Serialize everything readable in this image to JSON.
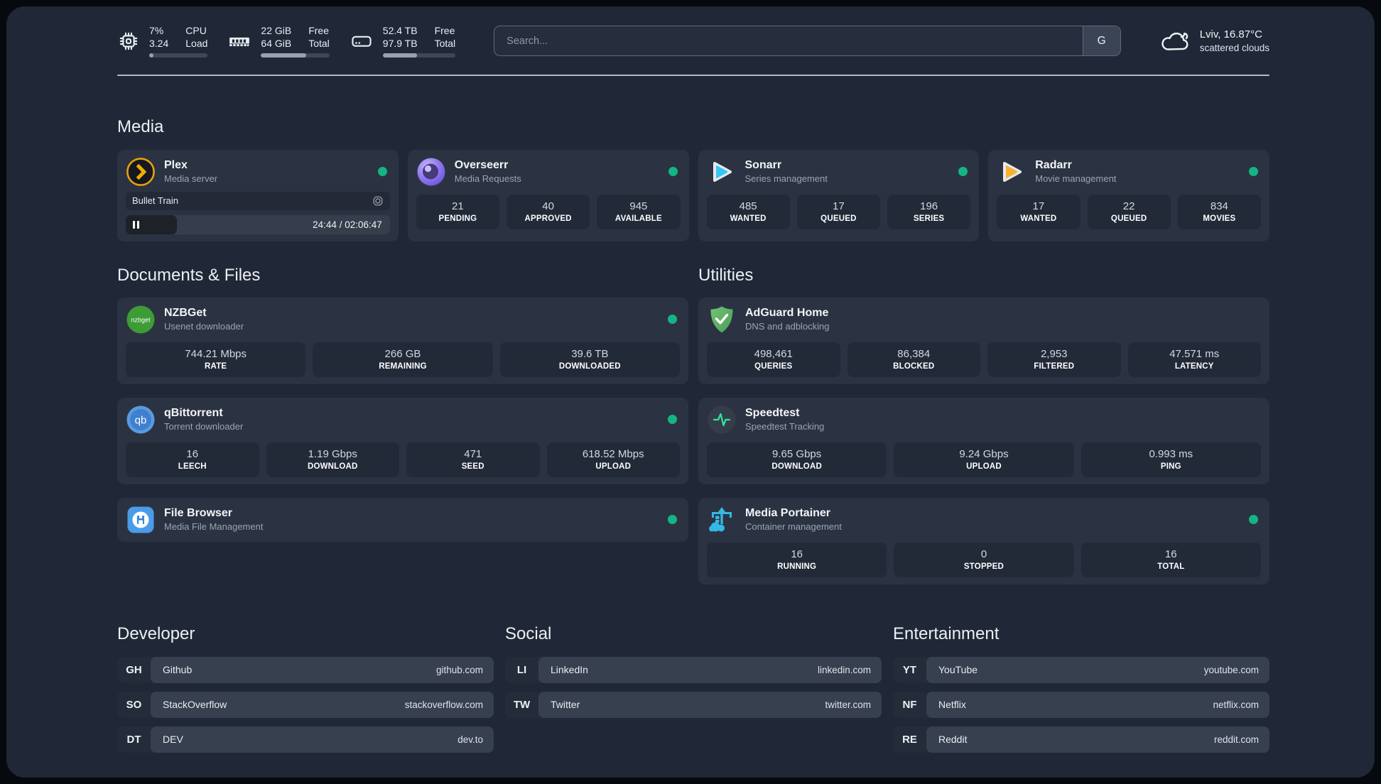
{
  "topbar": {
    "stats": [
      {
        "icon": "cpu-icon",
        "values": [
          "7%",
          "3.24"
        ],
        "labels": [
          "CPU",
          "Load"
        ],
        "progress_pct": 7
      },
      {
        "icon": "memory-icon",
        "values": [
          "22 GiB",
          "64 GiB"
        ],
        "labels": [
          "Free",
          "Total"
        ],
        "progress_pct": 66
      },
      {
        "icon": "disk-icon",
        "values": [
          "52.4 TB",
          "97.9 TB"
        ],
        "labels": [
          "Free",
          "Total"
        ],
        "progress_pct": 47
      }
    ],
    "search": {
      "placeholder": "Search...",
      "engine_button_label": "G"
    },
    "weather": {
      "location_temperature": "Lviv, 16.87°C",
      "condition": "scattered clouds"
    }
  },
  "colors": {
    "status_online": "#14b584",
    "page_bg": "#202837",
    "card_bg": "#2b3342"
  },
  "sections": {
    "media": {
      "heading": "Media",
      "plex": {
        "name": "Plex",
        "description": "Media server",
        "status": "online",
        "now_playing_title": "Bullet Train",
        "time_display": "24:44 / 02:06:47",
        "progress_pct": 19.5
      },
      "cards": [
        {
          "name": "Overseerr",
          "description": "Media Requests",
          "status": "online",
          "stats": [
            {
              "value": "21",
              "label": "PENDING"
            },
            {
              "value": "40",
              "label": "APPROVED"
            },
            {
              "value": "945",
              "label": "AVAILABLE"
            }
          ]
        },
        {
          "name": "Sonarr",
          "description": "Series management",
          "status": "online",
          "stats": [
            {
              "value": "485",
              "label": "WANTED"
            },
            {
              "value": "17",
              "label": "QUEUED"
            },
            {
              "value": "196",
              "label": "SERIES"
            }
          ]
        },
        {
          "name": "Radarr",
          "description": "Movie management",
          "status": "online",
          "stats": [
            {
              "value": "17",
              "label": "WANTED"
            },
            {
              "value": "22",
              "label": "QUEUED"
            },
            {
              "value": "834",
              "label": "MOVIES"
            }
          ]
        }
      ]
    },
    "documents": {
      "heading": "Documents & Files",
      "cards": [
        {
          "name": "NZBGet",
          "description": "Usenet downloader",
          "status": "online",
          "icon_text": "nzbget",
          "stats": [
            {
              "value": "744.21 Mbps",
              "label": "RATE"
            },
            {
              "value": "266 GB",
              "label": "REMAINING"
            },
            {
              "value": "39.6 TB",
              "label": "DOWNLOADED"
            }
          ]
        },
        {
          "name": "qBittorrent",
          "description": "Torrent downloader",
          "status": "online",
          "icon_text": "qb",
          "stats": [
            {
              "value": "16",
              "label": "LEECH"
            },
            {
              "value": "1.19 Gbps",
              "label": "DOWNLOAD"
            },
            {
              "value": "471",
              "label": "SEED"
            },
            {
              "value": "618.52 Mbps",
              "label": "UPLOAD"
            }
          ]
        },
        {
          "name": "File Browser",
          "description": "Media File Management",
          "status": "online",
          "stats": []
        }
      ]
    },
    "utilities": {
      "heading": "Utilities",
      "cards": [
        {
          "name": "AdGuard Home",
          "description": "DNS and adblocking",
          "stats": [
            {
              "value": "498,461",
              "label": "QUERIES"
            },
            {
              "value": "86,384",
              "label": "BLOCKED"
            },
            {
              "value": "2,953",
              "label": "FILTERED"
            },
            {
              "value": "47.571 ms",
              "label": "LATENCY"
            }
          ]
        },
        {
          "name": "Speedtest",
          "description": "Speedtest Tracking",
          "stats": [
            {
              "value": "9.65 Gbps",
              "label": "DOWNLOAD"
            },
            {
              "value": "9.24 Gbps",
              "label": "UPLOAD"
            },
            {
              "value": "0.993 ms",
              "label": "PING"
            }
          ]
        },
        {
          "name": "Media Portainer",
          "description": "Container management",
          "status": "online",
          "stats": [
            {
              "value": "16",
              "label": "RUNNING"
            },
            {
              "value": "0",
              "label": "STOPPED"
            },
            {
              "value": "16",
              "label": "TOTAL"
            }
          ]
        }
      ]
    }
  },
  "bookmarks": [
    {
      "heading": "Developer",
      "items": [
        {
          "abbr": "GH",
          "name": "Github",
          "url": "github.com"
        },
        {
          "abbr": "SO",
          "name": "StackOverflow",
          "url": "stackoverflow.com"
        },
        {
          "abbr": "DT",
          "name": "DEV",
          "url": "dev.to"
        }
      ]
    },
    {
      "heading": "Social",
      "items": [
        {
          "abbr": "LI",
          "name": "LinkedIn",
          "url": "linkedin.com"
        },
        {
          "abbr": "TW",
          "name": "Twitter",
          "url": "twitter.com"
        }
      ]
    },
    {
      "heading": "Entertainment",
      "items": [
        {
          "abbr": "YT",
          "name": "YouTube",
          "url": "youtube.com"
        },
        {
          "abbr": "NF",
          "name": "Netflix",
          "url": "netflix.com"
        },
        {
          "abbr": "RE",
          "name": "Reddit",
          "url": "reddit.com"
        }
      ]
    }
  ]
}
